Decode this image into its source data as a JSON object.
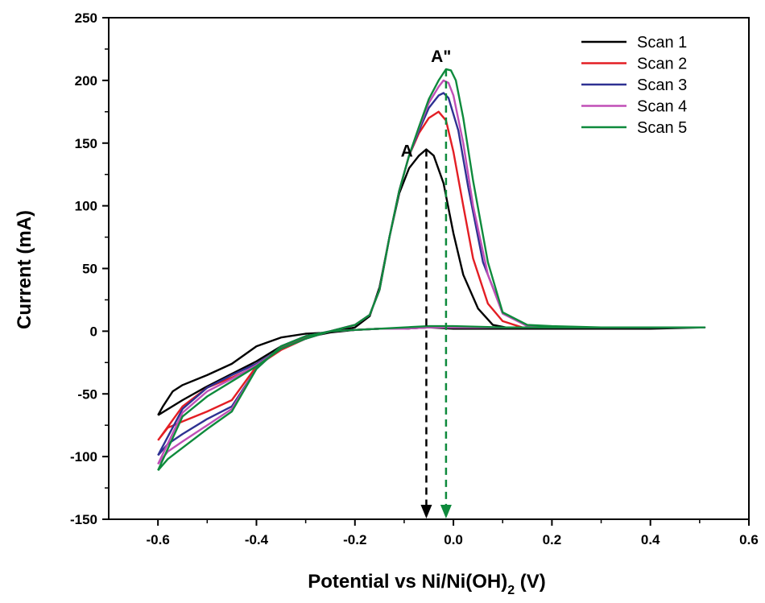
{
  "colors": {
    "scan1": "#000000",
    "scan2": "#e31e24",
    "scan3": "#2e3192",
    "scan4": "#c04fb7",
    "scan5": "#0e8a3c"
  },
  "chart_data": {
    "type": "line",
    "xlabel": "Potential vs Ni/Ni(OH)",
    "xlabel_sub": "2",
    "xlabel_unit": " (V)",
    "ylabel": "Current (mA)",
    "xlim": [
      -0.7,
      0.6
    ],
    "ylim": [
      -150,
      250
    ],
    "xticks": [
      -0.6,
      -0.4,
      -0.2,
      0.0,
      0.2,
      0.4,
      0.6
    ],
    "xtick_labels": [
      "-0.6",
      "-0.4",
      "-0.2",
      "0.0",
      "0.2",
      "0.4",
      "0.6"
    ],
    "yticks": [
      -150,
      -100,
      -50,
      0,
      50,
      100,
      150,
      200,
      250
    ],
    "ytick_labels": [
      "-150",
      "-100",
      "-50",
      "0",
      "50",
      "100",
      "150",
      "200",
      "250"
    ],
    "legend_position": "top-right",
    "grid": false,
    "annotations": [
      {
        "text": "A",
        "x": -0.075,
        "y": 147
      },
      {
        "text": "A\"",
        "x": -0.012,
        "y": 212
      }
    ],
    "markers": [
      {
        "series": "Scan 1",
        "x": -0.055,
        "y_top": 145,
        "y_bottom": -150
      },
      {
        "series": "Scan 5",
        "x": -0.015,
        "y_top": 209,
        "y_bottom": -150
      }
    ],
    "series": [
      {
        "name": "Scan 1",
        "x": [
          -0.6,
          -0.59,
          -0.57,
          -0.55,
          -0.5,
          -0.45,
          -0.4,
          -0.35,
          -0.3,
          -0.25,
          -0.2,
          -0.17,
          -0.15,
          -0.13,
          -0.11,
          -0.09,
          -0.07,
          -0.055,
          -0.04,
          -0.02,
          0.0,
          0.02,
          0.05,
          0.08,
          0.12,
          0.2,
          0.3,
          0.4,
          0.51,
          0.4,
          0.3,
          0.2,
          0.1,
          0.0,
          -0.05,
          -0.1,
          -0.15,
          -0.2,
          -0.25,
          -0.3,
          -0.35,
          -0.4,
          -0.45,
          -0.5,
          -0.55,
          -0.6
        ],
        "y": [
          -67,
          -60,
          -48,
          -43,
          -35,
          -26,
          -12,
          -5,
          -2,
          -1,
          3,
          12,
          35,
          75,
          110,
          130,
          140,
          145,
          140,
          118,
          78,
          45,
          18,
          5,
          2,
          2,
          2,
          2,
          3,
          2,
          2,
          2,
          2,
          2,
          3,
          2,
          2,
          1,
          -1,
          -5,
          -12,
          -24,
          -34,
          -44,
          -55,
          -67
        ]
      },
      {
        "name": "Scan 2",
        "x": [
          -0.6,
          -0.58,
          -0.55,
          -0.5,
          -0.45,
          -0.4,
          -0.35,
          -0.3,
          -0.25,
          -0.2,
          -0.17,
          -0.15,
          -0.13,
          -0.11,
          -0.09,
          -0.07,
          -0.05,
          -0.03,
          -0.015,
          0.0,
          0.02,
          0.04,
          0.07,
          0.1,
          0.14,
          0.2,
          0.3,
          0.4,
          0.51,
          0.4,
          0.3,
          0.2,
          0.1,
          0.0,
          -0.05,
          -0.1,
          -0.15,
          -0.2,
          -0.25,
          -0.3,
          -0.35,
          -0.4,
          -0.45,
          -0.5,
          -0.55,
          -0.6
        ],
        "y": [
          -87,
          -77,
          -72,
          -64,
          -55,
          -28,
          -13,
          -5,
          0,
          5,
          13,
          33,
          75,
          112,
          140,
          158,
          170,
          175,
          168,
          143,
          100,
          58,
          22,
          8,
          3,
          3,
          3,
          3,
          3,
          3,
          3,
          3,
          3,
          3,
          3,
          2,
          2,
          1,
          0,
          -6,
          -15,
          -28,
          -37,
          -45,
          -60,
          -87
        ]
      },
      {
        "name": "Scan 3",
        "x": [
          -0.6,
          -0.58,
          -0.55,
          -0.5,
          -0.45,
          -0.4,
          -0.35,
          -0.3,
          -0.25,
          -0.2,
          -0.17,
          -0.15,
          -0.13,
          -0.11,
          -0.09,
          -0.07,
          -0.05,
          -0.03,
          -0.02,
          -0.01,
          0.01,
          0.03,
          0.06,
          0.1,
          0.15,
          0.2,
          0.3,
          0.4,
          0.51,
          0.4,
          0.3,
          0.2,
          0.1,
          0.0,
          -0.05,
          -0.1,
          -0.15,
          -0.2,
          -0.25,
          -0.3,
          -0.35,
          -0.4,
          -0.45,
          -0.5,
          -0.55,
          -0.6
        ],
        "y": [
          -99,
          -90,
          -82,
          -70,
          -60,
          -30,
          -12,
          -4,
          0,
          5,
          13,
          33,
          75,
          112,
          140,
          160,
          178,
          188,
          190,
          186,
          160,
          115,
          55,
          15,
          4,
          3,
          3,
          3,
          3,
          3,
          3,
          3,
          3,
          3,
          3,
          2,
          2,
          1,
          0,
          -6,
          -14,
          -26,
          -35,
          -45,
          -62,
          -99
        ]
      },
      {
        "name": "Scan 4",
        "x": [
          -0.6,
          -0.58,
          -0.55,
          -0.5,
          -0.45,
          -0.4,
          -0.35,
          -0.3,
          -0.25,
          -0.2,
          -0.17,
          -0.15,
          -0.13,
          -0.11,
          -0.09,
          -0.07,
          -0.05,
          -0.03,
          -0.02,
          -0.01,
          0.0,
          0.02,
          0.04,
          0.07,
          0.1,
          0.15,
          0.2,
          0.3,
          0.4,
          0.51,
          0.4,
          0.3,
          0.2,
          0.1,
          0.0,
          -0.05,
          -0.1,
          -0.15,
          -0.2,
          -0.25,
          -0.3,
          -0.35,
          -0.4,
          -0.45,
          -0.5,
          -0.55,
          -0.6
        ],
        "y": [
          -106,
          -96,
          -88,
          -75,
          -62,
          -30,
          -12,
          -4,
          0,
          5,
          13,
          33,
          75,
          112,
          140,
          162,
          182,
          195,
          200,
          198,
          188,
          150,
          100,
          45,
          14,
          4,
          3,
          3,
          3,
          3,
          3,
          3,
          3,
          3,
          3,
          3,
          2,
          2,
          1,
          0,
          -6,
          -14,
          -27,
          -38,
          -48,
          -65,
          -106
        ]
      },
      {
        "name": "Scan 5",
        "x": [
          -0.6,
          -0.58,
          -0.55,
          -0.5,
          -0.45,
          -0.4,
          -0.35,
          -0.3,
          -0.25,
          -0.2,
          -0.17,
          -0.15,
          -0.13,
          -0.11,
          -0.09,
          -0.07,
          -0.05,
          -0.03,
          -0.015,
          -0.005,
          0.005,
          0.02,
          0.04,
          0.07,
          0.1,
          0.15,
          0.2,
          0.3,
          0.4,
          0.51,
          0.4,
          0.3,
          0.2,
          0.1,
          0.0,
          -0.05,
          -0.1,
          -0.15,
          -0.2,
          -0.25,
          -0.3,
          -0.35,
          -0.4,
          -0.45,
          -0.5,
          -0.55,
          -0.6
        ],
        "y": [
          -111,
          -102,
          -93,
          -78,
          -64,
          -30,
          -12,
          -4,
          0,
          5,
          13,
          33,
          75,
          112,
          140,
          163,
          185,
          200,
          209,
          208,
          200,
          170,
          120,
          55,
          15,
          5,
          4,
          3,
          3,
          3,
          3,
          3,
          3,
          3,
          4,
          4,
          3,
          2,
          1,
          0,
          -6,
          -14,
          -28,
          -40,
          -52,
          -68,
          -111
        ]
      }
    ]
  }
}
